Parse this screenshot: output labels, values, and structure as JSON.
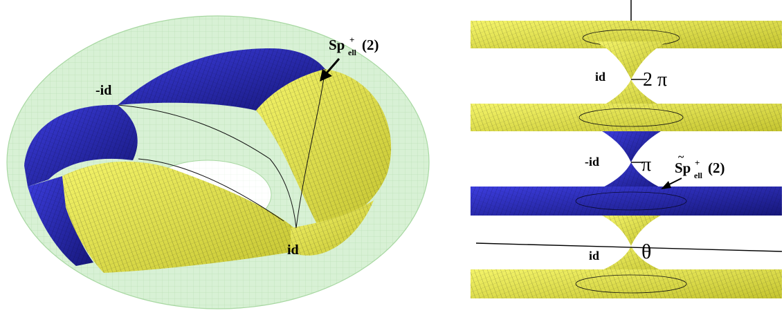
{
  "colors": {
    "yellow": "#ecec4a",
    "yellow_dark": "#c9c935",
    "blue": "#2e2fc8",
    "blue_dark": "#1b1c8e",
    "torus_green": "#cfeccc",
    "mesh": "#1a1a1a"
  },
  "left_panel": {
    "label_sp": "Sp",
    "label_sp_sup": "+",
    "label_sp_sub": "ell",
    "label_sp_arg": "(2)",
    "label_minus_id": "-id",
    "label_id": "id"
  },
  "right_panel": {
    "label_id_top": "id",
    "label_2pi": "2 π",
    "label_minus_id": "-id",
    "label_pi": "π",
    "label_tilde_sp": "Sp",
    "label_tilde_sup": "+",
    "label_tilde_sub": "ell",
    "label_tilde_arg": "(2)",
    "label_tilde_mark": "~",
    "label_id_bottom": "id",
    "label_theta": "θ"
  }
}
